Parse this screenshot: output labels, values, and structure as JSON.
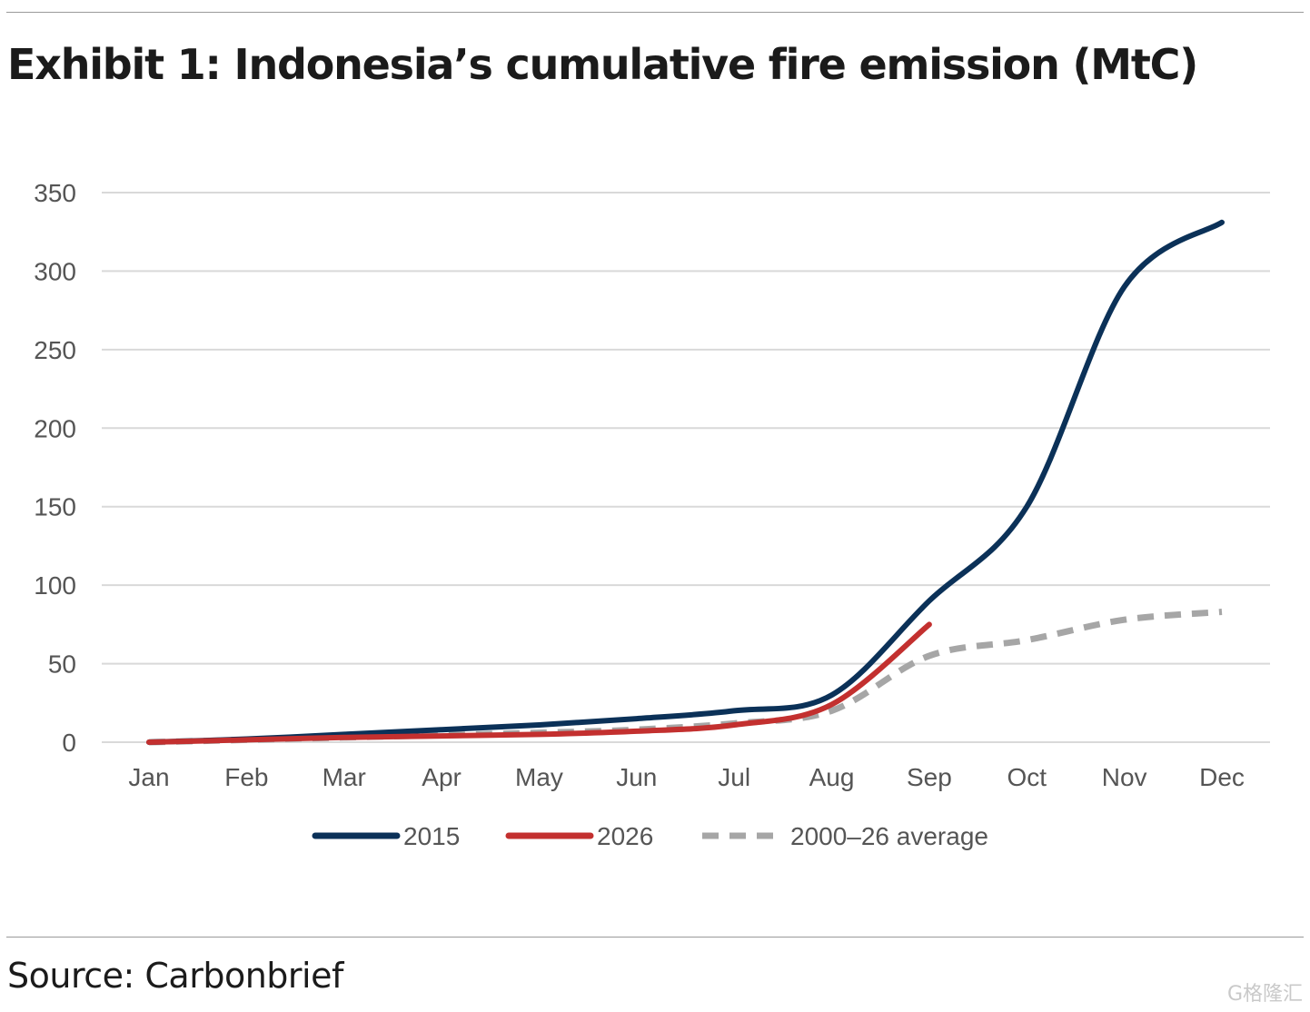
{
  "title": "Exhibit 1: Indonesia’s cumulative fire emission (MtC)",
  "source": "Source: Carbonbrief",
  "watermark": "G格隆汇",
  "colors": {
    "series_2015": "#0b3158",
    "series_2026": "#c3302f",
    "series_avg": "#a6a6a6",
    "grid": "#d9d9d9",
    "axis_text": "#555555"
  },
  "chart_data": {
    "type": "line",
    "x": [
      "Jan",
      "Feb",
      "Mar",
      "Apr",
      "May",
      "Jun",
      "Jul",
      "Aug",
      "Sep",
      "Oct",
      "Nov",
      "Dec"
    ],
    "ylim": [
      0,
      350
    ],
    "yticks": [
      0,
      50,
      100,
      150,
      200,
      250,
      300,
      350
    ],
    "grid": true,
    "legend_position": "bottom",
    "series": [
      {
        "name": "2015",
        "style": "solid",
        "values": [
          0,
          2,
          5,
          8,
          11,
          15,
          20,
          30,
          90,
          150,
          290,
          331
        ]
      },
      {
        "name": "2026",
        "style": "solid",
        "values": [
          0,
          1.5,
          3,
          4,
          5,
          7,
          11,
          24,
          75,
          null,
          null,
          null
        ]
      },
      {
        "name": "2000–26 average",
        "style": "dashed",
        "values": [
          0,
          1.5,
          3,
          4.5,
          6,
          8,
          12,
          20,
          55,
          65,
          78,
          83
        ]
      }
    ]
  }
}
